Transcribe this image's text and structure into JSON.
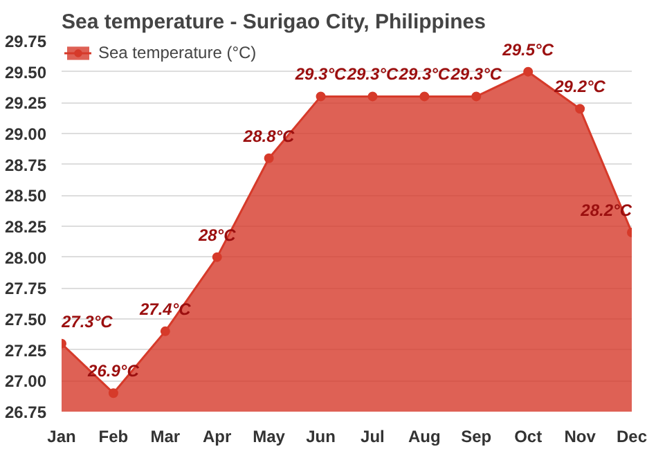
{
  "chart_data": {
    "type": "area",
    "title": "Sea temperature - Surigao City, Philippines",
    "categories": [
      "Jan",
      "Feb",
      "Mar",
      "Apr",
      "May",
      "Jun",
      "Jul",
      "Aug",
      "Sep",
      "Oct",
      "Nov",
      "Dec"
    ],
    "series": [
      {
        "name": "Sea temperature (°C)",
        "color": "#d63a2a",
        "values": [
          27.3,
          26.9,
          27.4,
          28,
          28.8,
          29.3,
          29.3,
          29.3,
          29.3,
          29.5,
          29.2,
          28.2
        ],
        "value_labels": [
          "27.3°C",
          "26.9°C",
          "27.4°C",
          "28°C",
          "28.8°C",
          "29.3°C",
          "29.3°C",
          "29.3°C",
          "29.3°C",
          "29.5°C",
          "29.2°C",
          "28.2°C"
        ]
      }
    ],
    "ylim": [
      26.75,
      29.75
    ],
    "yticks": [
      29.75,
      {
        "value": 29.5,
        "label": "29.50"
      },
      29.25,
      {
        "value": 29.0,
        "label": "29.00"
      },
      28.75,
      {
        "value": 28.5,
        "label": "28.50"
      },
      28.25,
      {
        "value": 28.0,
        "label": "28.00"
      },
      27.75,
      {
        "value": 27.5,
        "label": "27.50"
      },
      27.25,
      {
        "value": 27.0,
        "label": "27.00"
      },
      26.75
    ],
    "grid": "y",
    "legend": "top left",
    "marker": "circle",
    "line_style": "solid"
  }
}
